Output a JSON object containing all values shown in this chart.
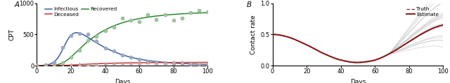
{
  "panel_A_label": "A",
  "panel_B_label": "B",
  "ylabel_A": "CPT",
  "ylabel_B": "Contact rate",
  "xlabel": "Days",
  "xlim": [
    0,
    100
  ],
  "ylim_A": [
    0,
    1000
  ],
  "ylim_B": [
    0.0,
    1.0
  ],
  "yticks_A": [
    0,
    500,
    1000
  ],
  "yticks_B": [
    0.0,
    0.5,
    1.0
  ],
  "xticks": [
    0,
    20,
    40,
    60,
    80,
    100
  ],
  "colors": {
    "infectious": "#3B5EAA",
    "recovered": "#2A8A2A",
    "deceased": "#CC3333",
    "truth": "#8B1A1A",
    "estimate": "#8B1A1A",
    "scatter_edge": "#999999",
    "scatter_fill_inf": "#99AACE",
    "scatter_fill_rec": "#99CC99",
    "scatter_fill_dec": "#DDAAAA",
    "grey_lines": "#C0C0C0"
  }
}
